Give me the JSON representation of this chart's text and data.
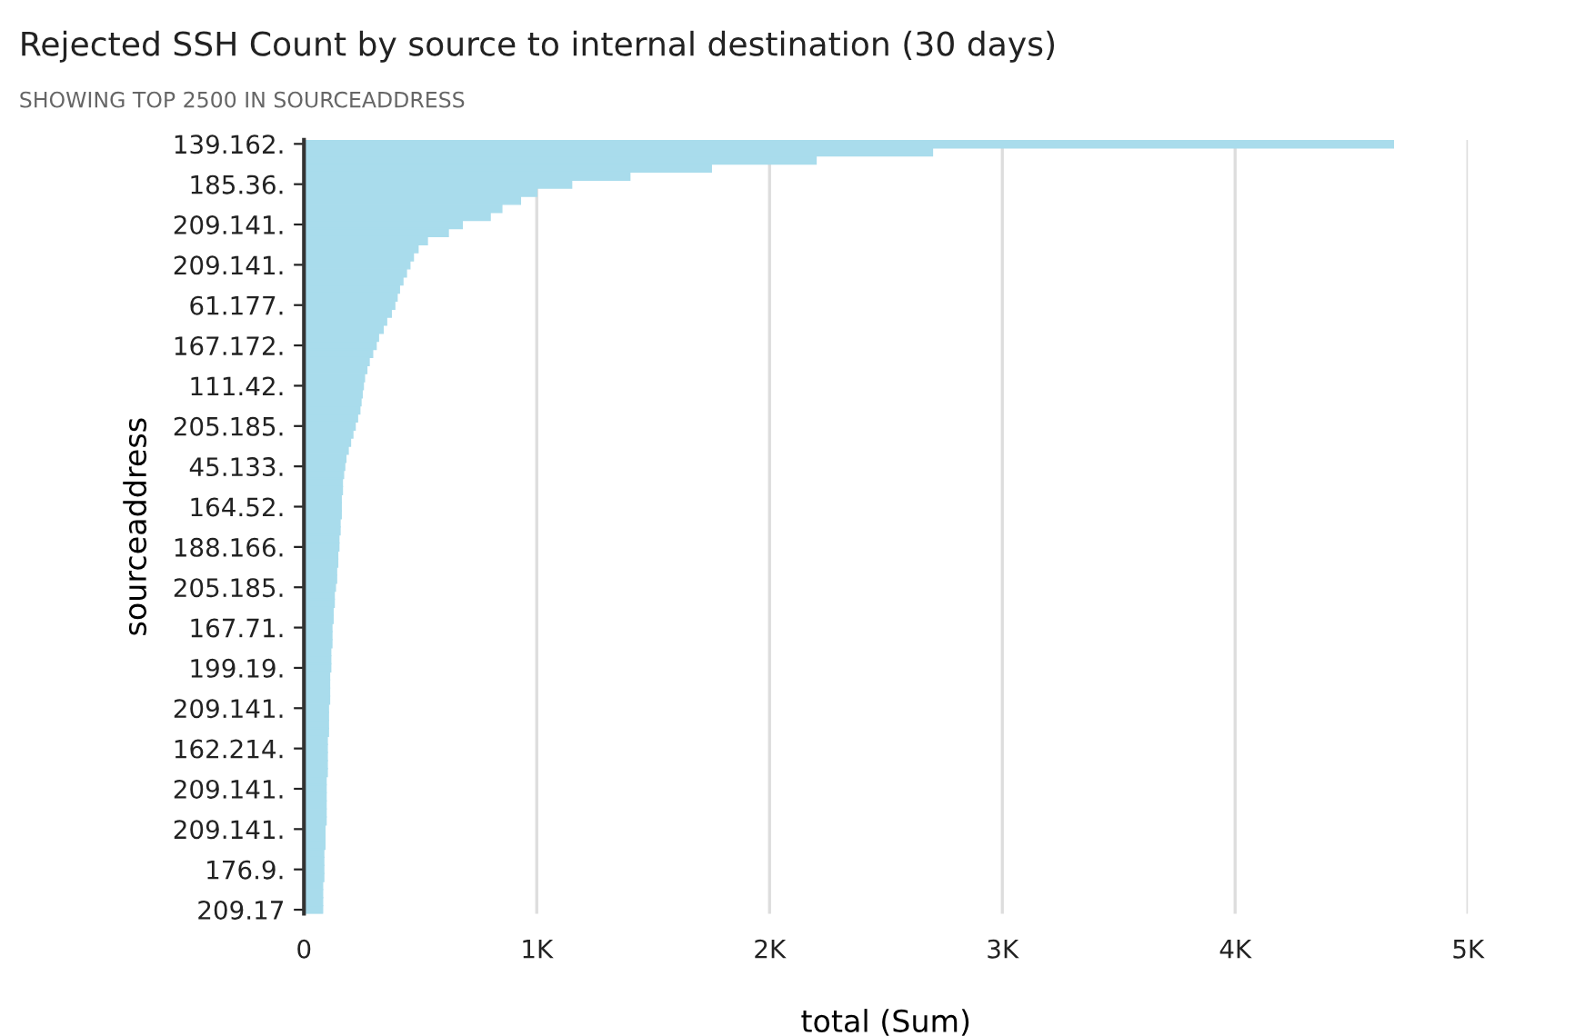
{
  "chart_data": {
    "type": "bar",
    "orientation": "horizontal",
    "title": "Rejected SSH Count by source to internal destination (30 days)",
    "subtitle": "SHOWING TOP 2500 IN SOURCEADDRESS",
    "xlabel": "total (Sum)",
    "ylabel": "sourceaddress",
    "categories": [
      "139.162.",
      null,
      null,
      null,
      null,
      "185.36.",
      null,
      null,
      null,
      null,
      "209.141.",
      null,
      null,
      null,
      null,
      "209.141.",
      null,
      null,
      null,
      null,
      "61.177.",
      null,
      null,
      null,
      null,
      "167.172.",
      null,
      null,
      null,
      null,
      "111.42.",
      null,
      null,
      null,
      null,
      "205.185.",
      null,
      null,
      null,
      null,
      "45.133.",
      null,
      null,
      null,
      null,
      "164.52.",
      null,
      null,
      null,
      null,
      "188.166.",
      null,
      null,
      null,
      null,
      "205.185.",
      null,
      null,
      null,
      null,
      "167.71.",
      null,
      null,
      null,
      null,
      "199.19.",
      null,
      null,
      null,
      null,
      "209.141.",
      null,
      null,
      null,
      null,
      "162.214.",
      null,
      null,
      null,
      null,
      "209.141.",
      null,
      null,
      null,
      null,
      "209.141.",
      null,
      null,
      null,
      null,
      "176.9.",
      null,
      null,
      null,
      null,
      "209.17"
    ],
    "values": [
      4680,
      2700,
      2200,
      1750,
      1400,
      1150,
      1000,
      930,
      850,
      800,
      680,
      620,
      530,
      490,
      470,
      455,
      440,
      425,
      410,
      400,
      390,
      375,
      355,
      340,
      320,
      310,
      295,
      280,
      270,
      260,
      255,
      250,
      245,
      240,
      230,
      220,
      210,
      200,
      190,
      180,
      175,
      170,
      165,
      165,
      160,
      160,
      160,
      155,
      155,
      150,
      150,
      145,
      145,
      140,
      140,
      135,
      130,
      130,
      125,
      125,
      120,
      120,
      120,
      115,
      115,
      115,
      110,
      110,
      110,
      110,
      105,
      105,
      105,
      105,
      100,
      100,
      100,
      100,
      100,
      95,
      95,
      95,
      95,
      95,
      95,
      90,
      90,
      90,
      85,
      85,
      85,
      85,
      80,
      80,
      80,
      80
    ],
    "color": "#a9dcec",
    "xlim": [
      0,
      5000
    ],
    "xticks": [
      0,
      {
        "value": 1000,
        "label": "1K"
      },
      {
        "value": 2000,
        "label": "2K"
      },
      {
        "value": 3000,
        "label": "3K"
      },
      {
        "value": 4000,
        "label": "4K"
      },
      {
        "value": 5000,
        "label": "5K"
      }
    ],
    "grid": "x"
  }
}
